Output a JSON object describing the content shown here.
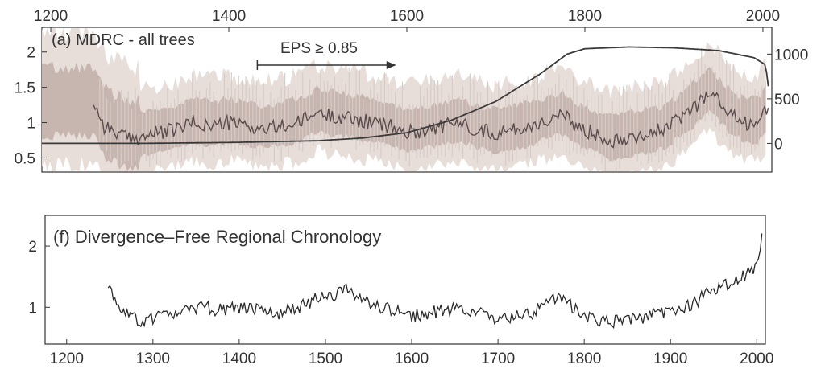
{
  "chart_data": [
    {
      "type": "line",
      "panel_label": "(a) MDRC - all trees",
      "annotation": "EPS ≥ 0.85",
      "eps_arrow_years": [
        1432,
        1588
      ],
      "x_ticks": [
        1200,
        1400,
        1600,
        1800,
        2000
      ],
      "xlim": [
        1190,
        2010
      ],
      "y_ticks": [
        0.5,
        1,
        1.5,
        2
      ],
      "y_tick_labels": [
        "0.5",
        "1",
        "1.5",
        "2"
      ],
      "ylim": [
        0.3,
        2.35
      ],
      "right_y_ticks": [
        0,
        500,
        1000
      ],
      "right_y_tick_labels": [
        "0",
        "500",
        "1000"
      ],
      "right_ylim": [
        -320,
        1300
      ],
      "grid": false,
      "series": [
        {
          "role": "chronology",
          "x": [
            1248,
            1260,
            1275,
            1290,
            1300,
            1320,
            1340,
            1360,
            1380,
            1400,
            1420,
            1440,
            1460,
            1480,
            1500,
            1510,
            1520,
            1540,
            1560,
            1580,
            1600,
            1620,
            1640,
            1660,
            1680,
            1700,
            1720,
            1740,
            1760,
            1775,
            1790,
            1810,
            1830,
            1850,
            1870,
            1890,
            1910,
            1925,
            1940,
            1950,
            1965,
            1980,
            1995,
            2007
          ],
          "y": [
            1.3,
            0.95,
            0.85,
            0.75,
            0.8,
            0.85,
            0.9,
            1.0,
            0.95,
            1.0,
            0.95,
            0.9,
            0.95,
            1.0,
            1.15,
            1.1,
            1.1,
            1.05,
            1.0,
            0.95,
            0.85,
            0.9,
            0.95,
            1.0,
            0.9,
            0.85,
            0.9,
            0.95,
            1.05,
            1.1,
            0.95,
            0.85,
            0.75,
            0.8,
            0.85,
            0.9,
            1.1,
            1.25,
            1.45,
            1.3,
            1.1,
            1.0,
            1.0,
            1.25
          ]
        },
        {
          "role": "sample size",
          "axis": "right",
          "x": [
            1190,
            1300,
            1400,
            1500,
            1550,
            1600,
            1650,
            1700,
            1750,
            1780,
            1800,
            1850,
            1900,
            1950,
            1990,
            2003,
            2007
          ],
          "y": [
            0,
            0,
            10,
            30,
            60,
            120,
            260,
            470,
            780,
            1000,
            1060,
            1080,
            1070,
            1040,
            960,
            880,
            560
          ]
        }
      ]
    },
    {
      "type": "line",
      "panel_label": "(f) Divergence–Free Regional Chronology",
      "x_ticks": [
        1200,
        1300,
        1400,
        1500,
        1600,
        1700,
        1800,
        1900,
        2000
      ],
      "x_tick_labels": [
        "1200",
        "1300",
        "1400",
        "1500",
        "1600",
        "1700",
        "1800",
        "1900",
        "2000"
      ],
      "xlim": [
        1175,
        2010
      ],
      "y_ticks": [
        1,
        2
      ],
      "y_tick_labels": [
        "1",
        "2"
      ],
      "ylim": [
        0.4,
        2.5
      ],
      "grid": false,
      "series": [
        {
          "role": "chronology",
          "x": [
            1248,
            1260,
            1275,
            1290,
            1300,
            1320,
            1340,
            1360,
            1380,
            1400,
            1420,
            1440,
            1460,
            1480,
            1500,
            1510,
            1520,
            1540,
            1560,
            1580,
            1600,
            1620,
            1640,
            1660,
            1680,
            1700,
            1720,
            1740,
            1760,
            1775,
            1790,
            1810,
            1830,
            1850,
            1870,
            1890,
            1910,
            1925,
            1940,
            1955,
            1970,
            1985,
            1995,
            2003,
            2007
          ],
          "y": [
            1.35,
            1.0,
            0.85,
            0.75,
            0.8,
            0.9,
            0.95,
            1.0,
            0.95,
            1.0,
            0.95,
            0.9,
            0.95,
            1.05,
            1.25,
            1.2,
            1.3,
            1.15,
            1.0,
            0.95,
            0.85,
            0.9,
            0.95,
            1.0,
            0.9,
            0.8,
            0.85,
            0.9,
            1.1,
            1.2,
            0.95,
            0.8,
            0.75,
            0.8,
            0.85,
            0.9,
            0.95,
            1.05,
            1.2,
            1.3,
            1.4,
            1.5,
            1.6,
            1.9,
            2.3
          ]
        }
      ]
    }
  ]
}
